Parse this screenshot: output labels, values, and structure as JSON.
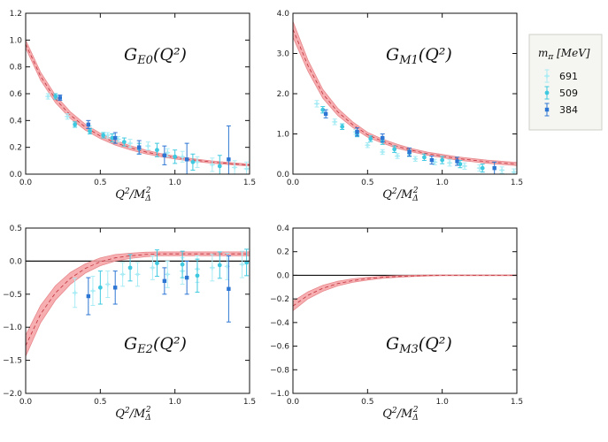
{
  "figure": {
    "legend": {
      "title_main": "m",
      "title_sub": "π",
      "title_rest": " [MeV]",
      "entries": [
        {
          "label": "691",
          "color": "#a9ecf5",
          "marker": "star"
        },
        {
          "label": "509",
          "color": "#3ec9e0",
          "marker": "dot"
        },
        {
          "label": "384",
          "color": "#2e76d4",
          "marker": "square"
        }
      ]
    },
    "band_color": "#f4a0a3",
    "band_line_color": "#c0303a"
  },
  "chart_data": [
    {
      "type": "scatter",
      "label_main": "G",
      "label_sub": "E0",
      "label_rest": "(Q²)",
      "xlabel_main": "Q",
      "xlabel_sup1": "2",
      "xlabel_mid": "/M",
      "xlabel_sub": "Δ",
      "xlabel_sup2": "2",
      "xlim": [
        0,
        1.5
      ],
      "ylim": [
        0,
        1.2
      ],
      "xticks": [
        "0.0",
        "0.5",
        "1.0",
        "1.5"
      ],
      "xtick_values": [
        0,
        0.5,
        1.0,
        1.5
      ],
      "yticks": [
        "0.0",
        "0.2",
        "0.4",
        "0.6",
        "0.8",
        "1.0",
        "1.2"
      ],
      "ytick_values": [
        0,
        0.2,
        0.4,
        0.6,
        0.8,
        1.0,
        1.2
      ],
      "zero_line": false,
      "band": {
        "x": [
          0,
          0.1,
          0.2,
          0.3,
          0.4,
          0.5,
          0.6,
          0.7,
          0.8,
          0.9,
          1.0,
          1.1,
          1.2,
          1.3,
          1.4,
          1.5
        ],
        "center": [
          0.97,
          0.73,
          0.56,
          0.44,
          0.35,
          0.285,
          0.235,
          0.197,
          0.167,
          0.143,
          0.124,
          0.109,
          0.096,
          0.085,
          0.076,
          0.068
        ],
        "halfwidth": [
          0.03,
          0.03,
          0.028,
          0.025,
          0.022,
          0.02,
          0.018,
          0.016,
          0.014,
          0.012,
          0.011,
          0.01,
          0.009,
          0.008,
          0.008,
          0.007
        ]
      },
      "series": [
        {
          "name": "691",
          "x": [
            0.15,
            0.28,
            0.43,
            0.55,
            0.62,
            0.7,
            0.82,
            0.95,
            1.05,
            1.15,
            1.25,
            1.4,
            1.48
          ],
          "y": [
            0.58,
            0.43,
            0.34,
            0.29,
            0.26,
            0.23,
            0.21,
            0.16,
            0.13,
            0.09,
            0.07,
            0.05,
            0.04
          ],
          "err": [
            0.02,
            0.02,
            0.02,
            0.02,
            0.02,
            0.03,
            0.03,
            0.03,
            0.04,
            0.04,
            0.05,
            0.05,
            0.05
          ]
        },
        {
          "name": "509",
          "x": [
            0.2,
            0.33,
            0.43,
            0.52,
            0.58,
            0.66,
            0.76,
            0.88,
            1.0,
            1.12,
            1.3
          ],
          "y": [
            0.58,
            0.37,
            0.32,
            0.29,
            0.27,
            0.24,
            0.19,
            0.18,
            0.13,
            0.09,
            0.06
          ],
          "err": [
            0.02,
            0.02,
            0.02,
            0.02,
            0.03,
            0.03,
            0.04,
            0.05,
            0.05,
            0.06,
            0.08
          ]
        },
        {
          "name": "384",
          "x": [
            0.23,
            0.42,
            0.6,
            0.76,
            0.93,
            1.08,
            1.36
          ],
          "y": [
            0.57,
            0.37,
            0.27,
            0.2,
            0.14,
            0.11,
            0.11
          ],
          "err": [
            0.02,
            0.03,
            0.04,
            0.05,
            0.07,
            0.12,
            0.25
          ]
        }
      ]
    },
    {
      "type": "scatter",
      "label_main": "G",
      "label_sub": "M1",
      "label_rest": "(Q²)",
      "xlabel_main": "Q",
      "xlabel_sup1": "2",
      "xlabel_mid": "/M",
      "xlabel_sub": "Δ",
      "xlabel_sup2": "2",
      "xlim": [
        0,
        1.5
      ],
      "ylim": [
        0,
        4.0
      ],
      "xticks": [
        "0.0",
        "0.5",
        "1.0",
        "1.5"
      ],
      "xtick_values": [
        0,
        0.5,
        1.0,
        1.5
      ],
      "yticks": [
        "0.0",
        "1.0",
        "2.0",
        "3.0",
        "4.0"
      ],
      "ytick_values": [
        0,
        1.0,
        2.0,
        3.0,
        4.0
      ],
      "zero_line": false,
      "band": {
        "x": [
          0,
          0.1,
          0.2,
          0.3,
          0.4,
          0.5,
          0.6,
          0.7,
          0.8,
          0.9,
          1.0,
          1.1,
          1.2,
          1.3,
          1.4,
          1.5
        ],
        "center": [
          3.6,
          2.7,
          2.0,
          1.55,
          1.23,
          0.98,
          0.82,
          0.69,
          0.59,
          0.51,
          0.45,
          0.39,
          0.35,
          0.31,
          0.28,
          0.25
        ],
        "halfwidth": [
          0.2,
          0.14,
          0.11,
          0.09,
          0.07,
          0.06,
          0.05,
          0.05,
          0.04,
          0.04,
          0.04,
          0.04,
          0.04,
          0.04,
          0.04,
          0.04
        ]
      },
      "series": [
        {
          "name": "691",
          "x": [
            0.16,
            0.28,
            0.42,
            0.5,
            0.6,
            0.7,
            0.82,
            0.95,
            1.05,
            1.15,
            1.25,
            1.4,
            1.48
          ],
          "y": [
            1.75,
            1.3,
            1.05,
            0.72,
            0.55,
            0.45,
            0.38,
            0.3,
            0.28,
            0.2,
            0.15,
            0.1,
            0.05
          ],
          "err": [
            0.08,
            0.07,
            0.06,
            0.06,
            0.06,
            0.06,
            0.06,
            0.07,
            0.08,
            0.08,
            0.08,
            0.08,
            0.08
          ]
        },
        {
          "name": "509",
          "x": [
            0.2,
            0.33,
            0.43,
            0.52,
            0.6,
            0.68,
            0.78,
            0.88,
            1.0,
            1.12,
            1.27
          ],
          "y": [
            1.6,
            1.18,
            1.0,
            0.88,
            0.82,
            0.62,
            0.52,
            0.42,
            0.35,
            0.25,
            0.15
          ],
          "err": [
            0.08,
            0.07,
            0.07,
            0.07,
            0.08,
            0.08,
            0.08,
            0.08,
            0.09,
            0.09,
            0.1
          ]
        },
        {
          "name": "384",
          "x": [
            0.22,
            0.43,
            0.6,
            0.78,
            0.93,
            1.1,
            1.35
          ],
          "y": [
            1.5,
            1.05,
            0.9,
            0.55,
            0.35,
            0.32,
            0.15
          ],
          "err": [
            0.1,
            0.1,
            0.1,
            0.1,
            0.1,
            0.1,
            0.15
          ]
        }
      ]
    },
    {
      "type": "scatter",
      "label_main": "G",
      "label_sub": "E2",
      "label_rest": "(Q²)",
      "xlabel_main": "Q",
      "xlabel_sup1": "2",
      "xlabel_mid": "/M",
      "xlabel_sub": "Δ",
      "xlabel_sup2": "2",
      "xlim": [
        0,
        1.5
      ],
      "ylim": [
        -2.0,
        0.5
      ],
      "xticks": [
        "0.0",
        "0.5",
        "1.0",
        "1.5"
      ],
      "xtick_values": [
        0,
        0.5,
        1.0,
        1.5
      ],
      "yticks": [
        "−2.0",
        "−1.5",
        "−1.0",
        "−0.5",
        "0.0",
        "0.5"
      ],
      "ytick_values": [
        -2.0,
        -1.5,
        -1.0,
        -0.5,
        0,
        0.5
      ],
      "zero_line": true,
      "band": {
        "x": [
          0,
          0.1,
          0.2,
          0.3,
          0.4,
          0.5,
          0.6,
          0.7,
          0.8,
          0.9,
          1.0,
          1.1,
          1.2,
          1.3,
          1.4,
          1.5
        ],
        "center": [
          -1.28,
          -0.8,
          -0.48,
          -0.26,
          -0.11,
          -0.01,
          0.05,
          0.08,
          0.1,
          0.11,
          0.11,
          0.11,
          0.11,
          0.11,
          0.11,
          0.11
        ],
        "halfwidth": [
          0.16,
          0.13,
          0.11,
          0.09,
          0.07,
          0.06,
          0.05,
          0.04,
          0.035,
          0.03,
          0.03,
          0.03,
          0.03,
          0.03,
          0.03,
          0.03
        ]
      },
      "series": [
        {
          "name": "691",
          "x": [
            0.33,
            0.45,
            0.55,
            0.65,
            0.75,
            0.85,
            0.95,
            1.05,
            1.15,
            1.25,
            1.35,
            1.45
          ],
          "y": [
            -0.48,
            -0.45,
            -0.35,
            -0.2,
            -0.2,
            -0.1,
            -0.2,
            -0.15,
            -0.12,
            -0.1,
            -0.08,
            -0.05
          ],
          "err": [
            0.22,
            0.22,
            0.2,
            0.18,
            0.18,
            0.18,
            0.2,
            0.2,
            0.2,
            0.2,
            0.2,
            0.2
          ]
        },
        {
          "name": "509",
          "x": [
            0.5,
            0.7,
            0.88,
            1.05,
            1.15,
            1.3,
            1.48
          ],
          "y": [
            -0.4,
            -0.1,
            -0.03,
            -0.05,
            -0.22,
            -0.06,
            -0.02
          ],
          "err": [
            0.25,
            0.2,
            0.2,
            0.2,
            0.25,
            0.2,
            0.2
          ]
        },
        {
          "name": "384",
          "x": [
            0.42,
            0.6,
            0.93,
            1.08,
            1.36
          ],
          "y": [
            -0.53,
            -0.4,
            -0.3,
            -0.25,
            -0.42
          ],
          "err": [
            0.28,
            0.25,
            0.2,
            0.25,
            0.5
          ]
        }
      ]
    },
    {
      "type": "scatter",
      "label_main": "G",
      "label_sub": "M3",
      "label_rest": "(Q²)",
      "xlabel_main": "Q",
      "xlabel_sup1": "2",
      "xlabel_mid": "/M",
      "xlabel_sub": "Δ",
      "xlabel_sup2": "2",
      "xlim": [
        0,
        1.5
      ],
      "ylim": [
        -1.0,
        0.4
      ],
      "xticks": [
        "0.0",
        "0.5",
        "1.0",
        "1.5"
      ],
      "xtick_values": [
        0,
        0.5,
        1.0,
        1.5
      ],
      "yticks": [
        "−1.0",
        "−0.8",
        "−0.6",
        "−0.4",
        "−0.2",
        "0.0",
        "0.2",
        "0.4"
      ],
      "ytick_values": [
        -1.0,
        -0.8,
        -0.6,
        -0.4,
        -0.2,
        0,
        0.2,
        0.4
      ],
      "zero_line": true,
      "band": {
        "x": [
          0,
          0.1,
          0.2,
          0.3,
          0.4,
          0.5,
          0.6,
          0.7,
          0.8,
          0.9,
          1.0,
          1.1,
          1.2,
          1.3,
          1.4,
          1.5
        ],
        "center": [
          -0.26,
          -0.17,
          -0.11,
          -0.07,
          -0.045,
          -0.028,
          -0.017,
          -0.01,
          -0.005,
          -0.002,
          0,
          0,
          0,
          0,
          0,
          0
        ],
        "halfwidth": [
          0.04,
          0.03,
          0.025,
          0.02,
          0.015,
          0.012,
          0.009,
          0.007,
          0.005,
          0.004,
          0.003,
          0.003,
          0.003,
          0.003,
          0.003,
          0.003
        ]
      },
      "series": []
    }
  ]
}
